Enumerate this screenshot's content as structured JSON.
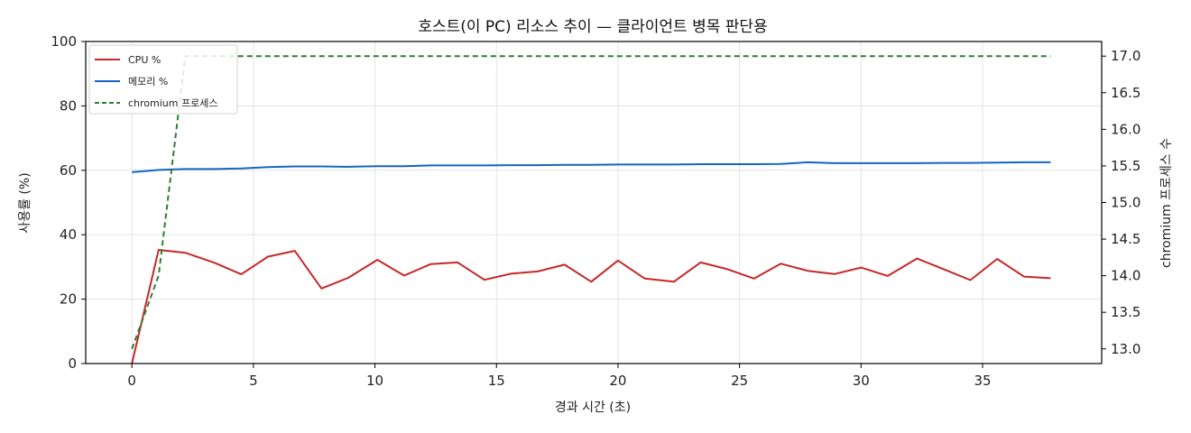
{
  "chart_data": {
    "type": "line",
    "title": "호스트(이 PC) 리소스 추이 — 클라이언트 병목 판단용",
    "xlabel": "경과 시간 (초)",
    "ylabel": "사용률 (%)",
    "y2label": "chromium 프로세스 수",
    "xlim": [
      -1.9,
      39.9
    ],
    "ylim": [
      0,
      100
    ],
    "y2lim": [
      12.8,
      17.2
    ],
    "xticks": [
      0,
      5,
      10,
      15,
      20,
      25,
      30,
      35
    ],
    "yticks": [
      0,
      20,
      40,
      60,
      80,
      100
    ],
    "y2ticks": [
      "13.0",
      "13.5",
      "14.0",
      "14.5",
      "15.0",
      "15.5",
      "16.0",
      "16.5",
      "17.0"
    ],
    "grid": true,
    "legend_position": "top-left",
    "x": [
      0,
      1.1,
      2.2,
      3.4,
      4.5,
      5.6,
      6.7,
      7.8,
      8.9,
      10.1,
      11.2,
      12.3,
      13.4,
      14.5,
      15.6,
      16.7,
      17.8,
      18.9,
      20.0,
      21.1,
      22.3,
      23.4,
      24.5,
      25.6,
      26.7,
      27.8,
      28.9,
      30.0,
      31.1,
      32.3,
      33.4,
      34.5,
      35.6,
      36.7,
      37.8
    ],
    "series": [
      {
        "name": "CPU %",
        "axis": "left",
        "color": "#c62828",
        "style": "solid",
        "values": [
          0,
          35.3,
          34.4,
          31.3,
          27.7,
          33.2,
          35.0,
          23.3,
          26.6,
          32.2,
          27.3,
          30.9,
          31.4,
          26.0,
          27.9,
          28.6,
          30.7,
          25.4,
          32.0,
          26.4,
          25.4,
          31.4,
          29.3,
          26.4,
          31.0,
          28.8,
          27.8,
          29.8,
          27.2,
          32.6,
          29.3,
          25.9,
          32.5,
          27.0,
          26.5
        ]
      },
      {
        "name": "메모리 %",
        "axis": "left",
        "color": "#1565c0",
        "style": "solid",
        "values": [
          59.4,
          60.1,
          60.4,
          60.4,
          60.6,
          61.0,
          61.2,
          61.2,
          61.1,
          61.3,
          61.3,
          61.5,
          61.5,
          61.5,
          61.6,
          61.6,
          61.7,
          61.7,
          61.8,
          61.8,
          61.8,
          61.9,
          61.9,
          61.9,
          62.0,
          62.5,
          62.2,
          62.2,
          62.2,
          62.2,
          62.3,
          62.3,
          62.4,
          62.5,
          62.5
        ]
      },
      {
        "name": "chromium 프로세스",
        "axis": "right",
        "color": "#2e7d32",
        "style": "dashed",
        "values": [
          13.0,
          14.0,
          17.0,
          17.0,
          17.0,
          17.0,
          17.0,
          17.0,
          17.0,
          17.0,
          17.0,
          17.0,
          17.0,
          17.0,
          17.0,
          17.0,
          17.0,
          17.0,
          17.0,
          17.0,
          17.0,
          17.0,
          17.0,
          17.0,
          17.0,
          17.0,
          17.0,
          17.0,
          17.0,
          17.0,
          17.0,
          17.0,
          17.0,
          17.0,
          17.0
        ]
      }
    ]
  }
}
